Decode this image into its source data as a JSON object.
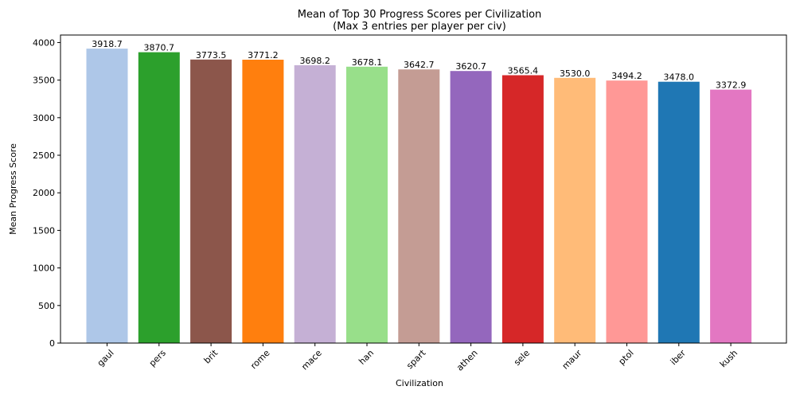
{
  "chart_data": {
    "type": "bar",
    "title": "Mean of Top 30 Progress Scores per Civilization",
    "subtitle": "(Max 3 entries per player per civ)",
    "xlabel": "Civilization",
    "ylabel": "Mean Progress Score",
    "ylim": [
      0,
      4100
    ],
    "yticks": [
      0,
      500,
      1000,
      1500,
      2000,
      2500,
      3000,
      3500,
      4000
    ],
    "grid": false,
    "categories": [
      "gaul",
      "pers",
      "brit",
      "rome",
      "mace",
      "han",
      "spart",
      "athen",
      "sele",
      "maur",
      "ptol",
      "iber",
      "kush"
    ],
    "values": [
      3918.7,
      3870.7,
      3773.5,
      3771.2,
      3698.2,
      3678.1,
      3642.7,
      3620.7,
      3565.4,
      3530.0,
      3494.2,
      3478.0,
      3372.9
    ],
    "data_labels": [
      "3918.7",
      "3870.7",
      "3773.5",
      "3771.2",
      "3698.2",
      "3678.1",
      "3642.7",
      "3620.7",
      "3565.4",
      "3530.0",
      "3494.2",
      "3478.0",
      "3372.9"
    ],
    "colors": [
      "#aec7e8",
      "#2ca02c",
      "#8c564b",
      "#ff7f0e",
      "#c5b0d5",
      "#98df8a",
      "#c49c94",
      "#9467bd",
      "#d62728",
      "#ffbb78",
      "#ff9896",
      "#1f77b4",
      "#e377c2"
    ]
  }
}
